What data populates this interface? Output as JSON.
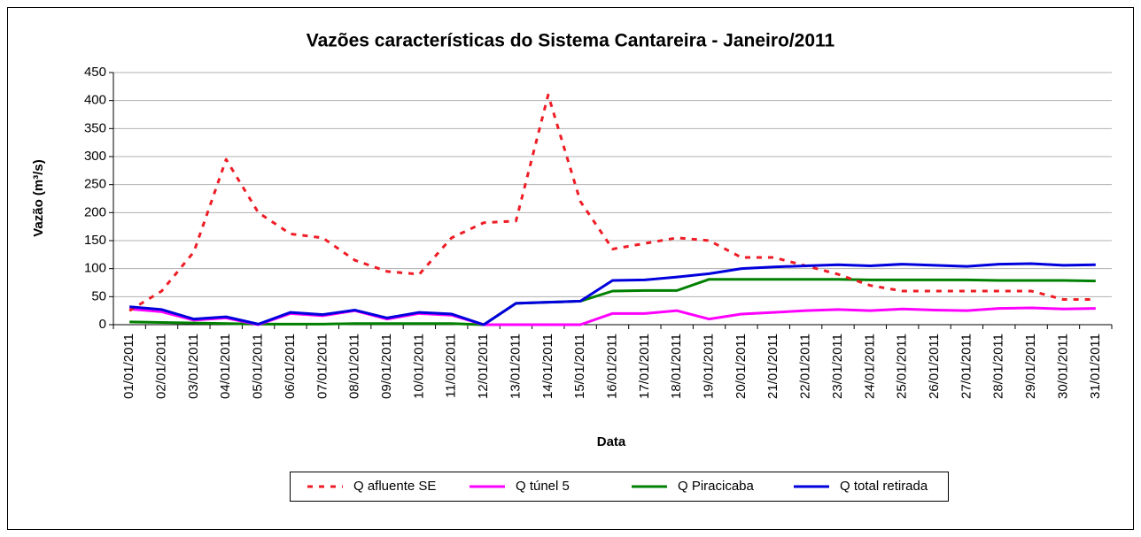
{
  "chart_data": {
    "type": "line",
    "title": "Vazões características do Sistema Cantareira - Janeiro/2011",
    "x_label": "Data",
    "y_label": "Vazão (m³/s)",
    "categories": [
      "01/01/2011",
      "02/01/2011",
      "03/01/2011",
      "04/01/2011",
      "05/01/2011",
      "06/01/2011",
      "07/01/2011",
      "08/01/2011",
      "09/01/2011",
      "10/01/2011",
      "11/01/2011",
      "12/01/2011",
      "13/01/2011",
      "14/01/2011",
      "15/01/2011",
      "16/01/2011",
      "17/01/2011",
      "18/01/2011",
      "19/01/2011",
      "20/01/2011",
      "21/01/2011",
      "22/01/2011",
      "23/01/2011",
      "24/01/2011",
      "25/01/2011",
      "26/01/2011",
      "27/01/2011",
      "28/01/2011",
      "29/01/2011",
      "30/01/2011",
      "31/01/2011"
    ],
    "series": [
      {
        "name": "Q afluente SE",
        "color": "#ee1c25",
        "dashed": true,
        "values": [
          25,
          60,
          130,
          295,
          200,
          162,
          155,
          115,
          95,
          90,
          155,
          182,
          185,
          410,
          220,
          135,
          145,
          155,
          150,
          120,
          120,
          105,
          90,
          70,
          60,
          60,
          60,
          60,
          60,
          45,
          45
        ]
      },
      {
        "name": "Q túnel 5",
        "color": "#ff00ff",
        "dashed": false,
        "values": [
          28,
          23,
          8,
          12,
          0,
          20,
          16,
          25,
          10,
          20,
          17,
          0,
          0,
          0,
          0,
          20,
          20,
          25,
          10,
          19,
          22,
          25,
          27,
          25,
          28,
          26,
          25,
          29,
          30,
          28,
          29
        ]
      },
      {
        "name": "Q Piracicaba",
        "color": "#008000",
        "dashed": false,
        "values": [
          5,
          4,
          3,
          2,
          1,
          1,
          1,
          2,
          2,
          2,
          2,
          0,
          38,
          40,
          42,
          60,
          61,
          61,
          81,
          81,
          81,
          81,
          81,
          80,
          80,
          80,
          80,
          79,
          79,
          79,
          78
        ]
      },
      {
        "name": "Q total retirada",
        "color": "#0000dd",
        "dashed": false,
        "values": [
          32,
          27,
          10,
          14,
          1,
          22,
          18,
          26,
          12,
          22,
          19,
          0,
          38,
          40,
          42,
          79,
          80,
          85,
          91,
          100,
          103,
          105,
          107,
          105,
          108,
          106,
          104,
          108,
          109,
          106,
          107
        ]
      }
    ],
    "ylim": [
      0,
      450
    ],
    "yticks": [
      0,
      50,
      100,
      150,
      200,
      250,
      300,
      350,
      400,
      450
    ],
    "grid": true,
    "legend": "bottom"
  }
}
